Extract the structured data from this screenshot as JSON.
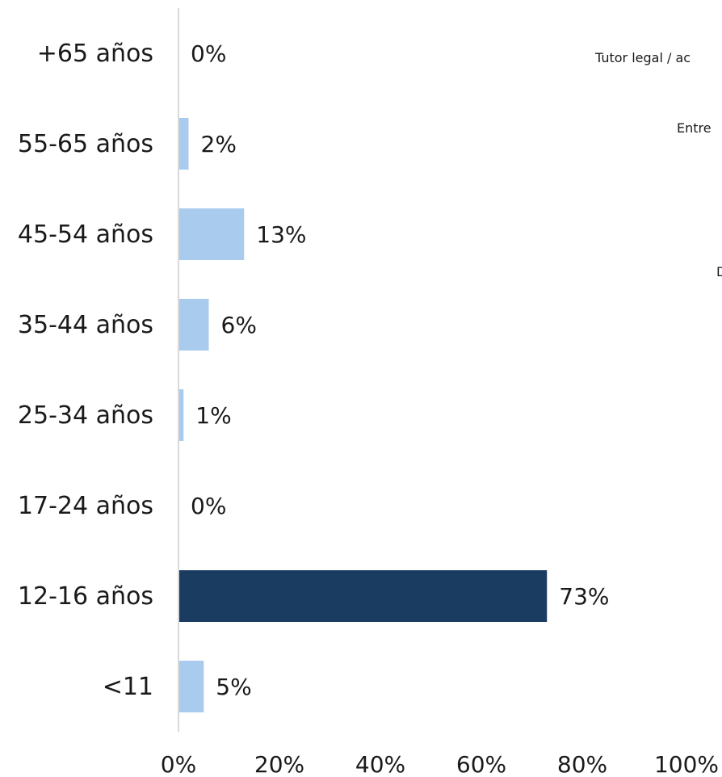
{
  "chart_data": {
    "type": "bar",
    "orientation": "horizontal",
    "categories": [
      "+65 años",
      "55-65 años",
      "45-54 años",
      "35-44 años",
      "25-34 años",
      "17-24 años",
      "12-16 años",
      "<11"
    ],
    "values": [
      0,
      2,
      13,
      6,
      1,
      0,
      73,
      5
    ],
    "value_labels": [
      "0%",
      "2%",
      "13%",
      "6%",
      "1%",
      "0%",
      "73%",
      "5%"
    ],
    "highlight_index": 6,
    "xlim": [
      0,
      100
    ],
    "xticks": [
      "0%",
      "20%",
      "40%",
      "60%",
      "80%",
      "100%"
    ],
    "grid": false,
    "colors": {
      "bar": "#a9cbed",
      "highlight": "#1a3c61",
      "axis": "#d9d9d9"
    }
  },
  "side_labels": [
    "Tutor legal / ac",
    "Entre",
    "D"
  ]
}
